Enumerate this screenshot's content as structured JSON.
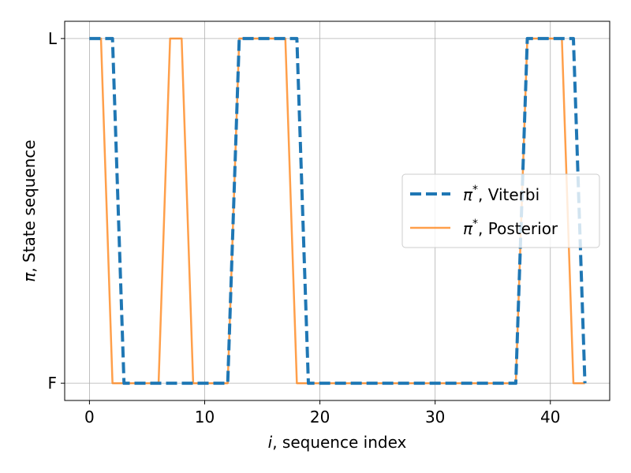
{
  "chart_data": {
    "type": "line",
    "title": "",
    "xlabel": {
      "italic": "i",
      "rest": ", sequence index"
    },
    "ylabel": {
      "italic": "π",
      "rest": ", State sequence"
    },
    "xlim": [
      -2.15,
      45.15
    ],
    "ylim": [
      -0.05,
      1.05
    ],
    "xticks": [
      0,
      10,
      20,
      30,
      40
    ],
    "yticks": [
      0,
      1
    ],
    "ytick_labels": [
      "F",
      "L"
    ],
    "grid": true,
    "legend_position": "center-right",
    "series": [
      {
        "name": {
          "symbol": "π",
          "sup": "*",
          "rest": ", Viterbi"
        },
        "color": "#1f77b4",
        "style": "dashed",
        "x": [
          0,
          1,
          2,
          3,
          4,
          5,
          6,
          7,
          8,
          9,
          10,
          11,
          12,
          13,
          14,
          15,
          16,
          17,
          18,
          19,
          20,
          21,
          22,
          23,
          24,
          25,
          26,
          27,
          28,
          29,
          30,
          31,
          32,
          33,
          34,
          35,
          36,
          37,
          38,
          39,
          40,
          41,
          42,
          43
        ],
        "y": [
          1,
          1,
          1,
          0,
          0,
          0,
          0,
          0,
          0,
          0,
          0,
          0,
          0,
          1,
          1,
          1,
          1,
          1,
          1,
          0,
          0,
          0,
          0,
          0,
          0,
          0,
          0,
          0,
          0,
          0,
          0,
          0,
          0,
          0,
          0,
          0,
          0,
          0,
          1,
          1,
          1,
          1,
          1,
          0
        ]
      },
      {
        "name": {
          "symbol": "π",
          "sup": "*",
          "rest": ", Posterior"
        },
        "color": "#ff7f0e",
        "style": "solid",
        "x": [
          0,
          1,
          2,
          3,
          4,
          5,
          6,
          7,
          8,
          9,
          10,
          11,
          12,
          13,
          14,
          15,
          16,
          17,
          18,
          19,
          20,
          21,
          22,
          23,
          24,
          25,
          26,
          27,
          28,
          29,
          30,
          31,
          32,
          33,
          34,
          35,
          36,
          37,
          38,
          39,
          40,
          41,
          42,
          43
        ],
        "y": [
          1,
          1,
          0,
          0,
          0,
          0,
          0,
          1,
          1,
          0,
          0,
          0,
          0,
          1,
          1,
          1,
          1,
          1,
          0,
          0,
          0,
          0,
          0,
          0,
          0,
          0,
          0,
          0,
          0,
          0,
          0,
          0,
          0,
          0,
          0,
          0,
          0,
          0,
          1,
          1,
          1,
          1,
          0,
          0
        ]
      }
    ]
  }
}
